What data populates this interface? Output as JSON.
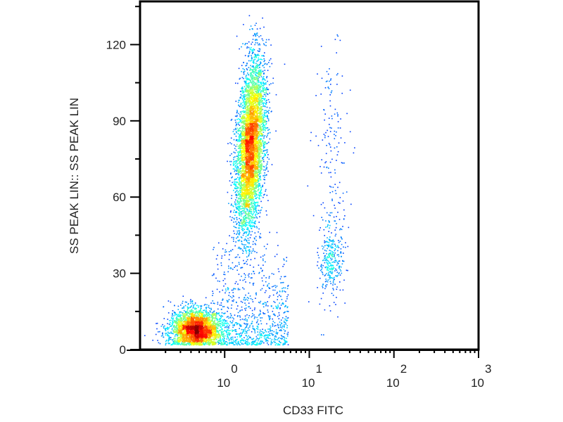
{
  "chart_data": {
    "type": "scatter",
    "subtype": "flow-cytometry density dot plot",
    "xlabel": "CD33 FITC",
    "ylabel": "SS PEAK LIN:: SS PEAK LIN",
    "xscale": "log",
    "xlim": [
      0.1,
      1000
    ],
    "ylim": [
      0,
      137
    ],
    "x_ticks": [
      {
        "base": "10",
        "exp": "0",
        "value": 1
      },
      {
        "base": "10",
        "exp": "1",
        "value": 10
      },
      {
        "base": "10",
        "exp": "2",
        "value": 100
      },
      {
        "base": "10",
        "exp": "3",
        "value": 1000
      }
    ],
    "y_ticks": [
      {
        "label": "0",
        "value": 0
      },
      {
        "label": "30",
        "value": 30
      },
      {
        "label": "60",
        "value": 60
      },
      {
        "label": "90",
        "value": 90
      },
      {
        "label": "120",
        "value": 120
      }
    ],
    "grid": false,
    "colormap": "jet (density: blue low → red high)",
    "populations": [
      {
        "x_center": 0.45,
        "y_center": 8,
        "x_log_sd": 0.15,
        "y_sd": 4,
        "relative_count": 3000
      },
      {
        "x_center": 2.0,
        "y_center": 80,
        "x_log_sd": 0.08,
        "y_sd": 17,
        "relative_count": 5200
      },
      {
        "x_center": 18,
        "y_center": 35,
        "x_log_sd": 0.07,
        "y_sd": 7,
        "relative_count": 300
      },
      {
        "x_center": 18,
        "y_center": 75,
        "x_log_sd": 0.1,
        "y_sd": 25,
        "relative_count": 180
      },
      {
        "x_center": 2.0,
        "y_center": 12,
        "x_log_sd": 0.35,
        "y_sd": 8,
        "relative_count": 900
      }
    ]
  }
}
